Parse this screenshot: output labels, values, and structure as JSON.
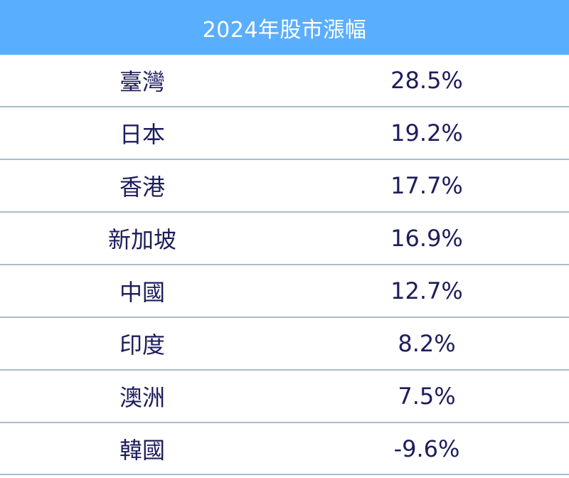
{
  "chart_data": {
    "type": "table",
    "title": "2024年股市漲幅",
    "rows": [
      {
        "label": "臺灣",
        "value": "28.5%"
      },
      {
        "label": "日本",
        "value": "19.2%"
      },
      {
        "label": "香港",
        "value": "17.7%"
      },
      {
        "label": "新加坡",
        "value": "16.9%"
      },
      {
        "label": "中國",
        "value": "12.7%"
      },
      {
        "label": "印度",
        "value": "8.2%"
      },
      {
        "label": "澳洲",
        "value": "7.5%"
      },
      {
        "label": "韓國",
        "value": "-9.6%"
      }
    ]
  },
  "colors": {
    "header_bg": "#5aaefe",
    "header_text": "#ffffff",
    "row_text": "#1d1d5c",
    "divider": "#a9bccb"
  }
}
